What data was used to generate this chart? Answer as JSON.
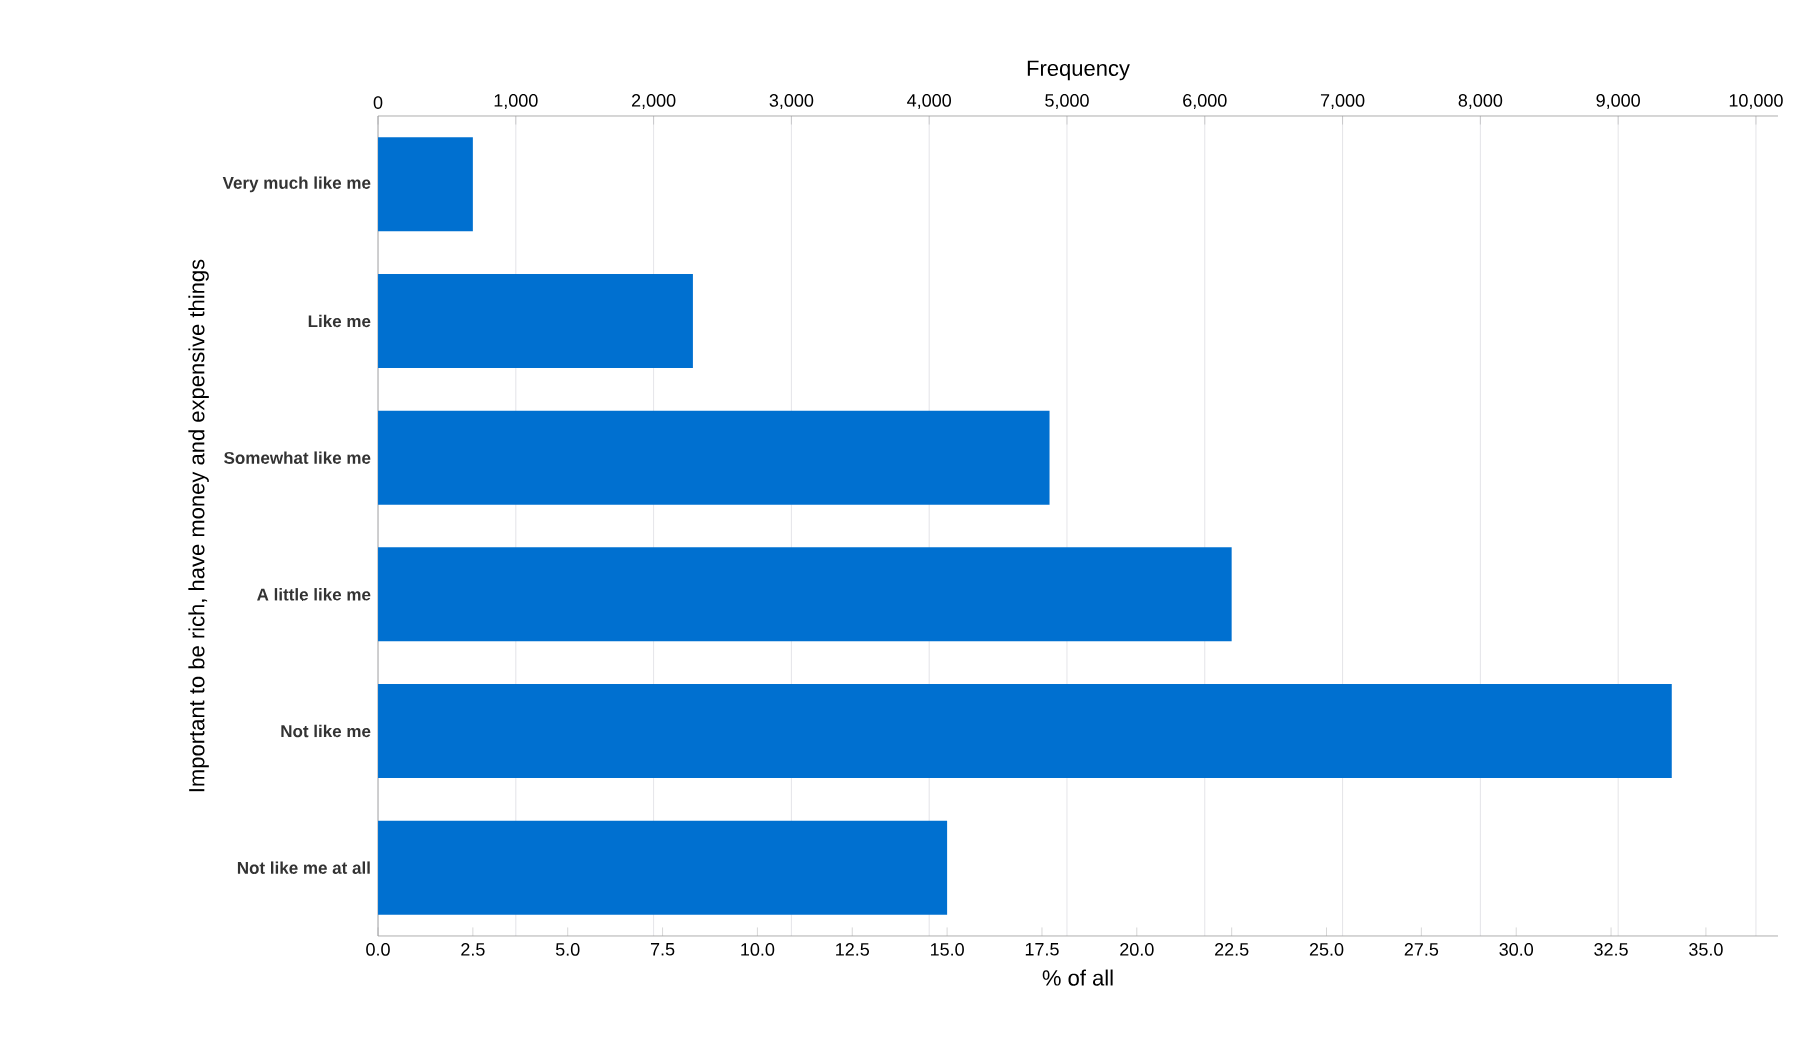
{
  "chart_data": {
    "type": "bar",
    "orientation": "horizontal",
    "xlabel": "% of all",
    "x2label": "Frequency",
    "ylabel": "Important to be rich, have money and expensive things",
    "categories": [
      "Very much like me",
      "Like me",
      "Somewhat like me",
      "A little like me",
      "Not like me",
      "Not like me at all"
    ],
    "values": [
      2.5,
      8.3,
      17.7,
      22.5,
      34.1,
      15.0
    ],
    "color": "#0070d0",
    "xlim": [
      0,
      36.9
    ],
    "xticks": [
      {
        "value": 0,
        "label": "0.0"
      },
      {
        "value": 2.5,
        "label": "2.5"
      },
      {
        "value": 5,
        "label": "5.0"
      },
      {
        "value": 7.5,
        "label": "7.5"
      },
      {
        "value": 10,
        "label": "10.0"
      },
      {
        "value": 12.5,
        "label": "12.5"
      },
      {
        "value": 15,
        "label": "15.0"
      },
      {
        "value": 17.5,
        "label": "17.5"
      },
      {
        "value": 20,
        "label": "20.0"
      },
      {
        "value": 22.5,
        "label": "22.5"
      },
      {
        "value": 25,
        "label": "25.0"
      },
      {
        "value": 27.5,
        "label": "27.5"
      },
      {
        "value": 30,
        "label": "30.0"
      },
      {
        "value": 32.5,
        "label": "32.5"
      },
      {
        "value": 35,
        "label": "35.0"
      }
    ],
    "x2lim": [
      0,
      10160
    ],
    "x2ticks": [
      0,
      {
        "value": 1000,
        "label": "1,000"
      },
      {
        "value": 2000,
        "label": "2,000"
      },
      {
        "value": 3000,
        "label": "3,000"
      },
      {
        "value": 4000,
        "label": "4,000"
      },
      {
        "value": 5000,
        "label": "5,000"
      },
      {
        "value": 6000,
        "label": "6,000"
      },
      {
        "value": 7000,
        "label": "7,000"
      },
      {
        "value": 8000,
        "label": "8,000"
      },
      {
        "value": 9000,
        "label": "9,000"
      },
      {
        "value": 10000,
        "label": "10,000"
      }
    ],
    "grid": "x"
  }
}
